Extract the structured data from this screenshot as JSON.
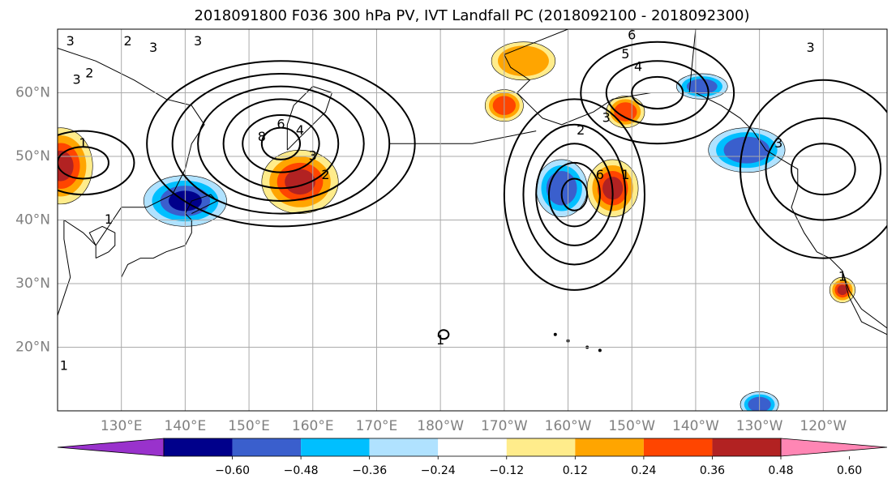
{
  "title": "2018091800 F036 300 hPa PV, IVT Landfall PC (2018092100 - 2018092300)",
  "map": {
    "projection": "PlateCarree",
    "lon_range": [
      120,
      250
    ],
    "lat_range": [
      10,
      70
    ],
    "gridlines": true,
    "lat_ticks": [
      {
        "value": 60,
        "label": "60°N"
      },
      {
        "value": 50,
        "label": "50°N"
      },
      {
        "value": 40,
        "label": "40°N"
      },
      {
        "value": 30,
        "label": "30°N"
      },
      {
        "value": 20,
        "label": "20°N"
      }
    ],
    "lon_ticks": [
      {
        "value": 130,
        "label": "130°E"
      },
      {
        "value": 140,
        "label": "140°E"
      },
      {
        "value": 150,
        "label": "150°E"
      },
      {
        "value": 160,
        "label": "160°E"
      },
      {
        "value": 170,
        "label": "170°E"
      },
      {
        "value": 180,
        "label": "180°W"
      },
      {
        "value": 190,
        "label": "170°W"
      },
      {
        "value": 200,
        "label": "160°W"
      },
      {
        "value": 210,
        "label": "150°W"
      },
      {
        "value": 220,
        "label": "140°W"
      },
      {
        "value": 230,
        "label": "130°W"
      },
      {
        "value": 240,
        "label": "120°W"
      }
    ]
  },
  "colorbar": {
    "extend": "both",
    "boundaries": [
      -0.72,
      -0.6,
      -0.48,
      -0.36,
      -0.24,
      -0.12,
      0.12,
      0.24,
      0.36,
      0.48,
      0.6,
      0.72
    ],
    "colors": [
      "#9932cc",
      "#00008b",
      "#3a5fcd",
      "#00bfff",
      "#b0e2ff",
      "#ffffff",
      "#ffec8b",
      "#ffa500",
      "#ff4500",
      "#b22222",
      "#ff86b4"
    ],
    "tick_labels": [
      "−0.60",
      "−0.48",
      "−0.36",
      "−0.24",
      "−0.12",
      "0.12",
      "0.24",
      "0.36",
      "0.48",
      "0.60"
    ]
  },
  "shading_fields": [
    {
      "name": "tan-left-edge",
      "lon": 120.5,
      "lat": 48.5,
      "rx": 5,
      "ry": 6,
      "value": 0.55
    },
    {
      "name": "blue-kuril",
      "lon": 140,
      "lat": 43,
      "rx": 6.5,
      "ry": 4,
      "value": -0.6
    },
    {
      "name": "red-northwest-pacific",
      "lon": 158,
      "lat": 46,
      "rx": 6,
      "ry": 5,
      "value": 0.55
    },
    {
      "name": "orange-alaska-north",
      "lon": 193,
      "lat": 65,
      "rx": 5,
      "ry": 3,
      "value": 0.3
    },
    {
      "name": "red-bering-sea",
      "lon": 190,
      "lat": 58,
      "rx": 3,
      "ry": 2.5,
      "value": 0.45
    },
    {
      "name": "blue-central-pacific",
      "lon": 199,
      "lat": 45,
      "rx": 4,
      "ry": 4.5,
      "value": -0.4
    },
    {
      "name": "red-central-pacific",
      "lon": 207,
      "lat": 45,
      "rx": 4,
      "ry": 4.5,
      "value": 0.5
    },
    {
      "name": "red-gulf-alaska-west",
      "lon": 209,
      "lat": 57,
      "rx": 3,
      "ry": 2.5,
      "value": 0.45
    },
    {
      "name": "blue-gulf-alaska-east",
      "lon": 221,
      "lat": 61,
      "rx": 4,
      "ry": 2,
      "value": -0.45
    },
    {
      "name": "blue-northeast-pacific",
      "lon": 228,
      "lat": 51,
      "rx": 6,
      "ry": 3.5,
      "value": -0.45
    },
    {
      "name": "red-baja",
      "lon": 243,
      "lat": 29,
      "rx": 2,
      "ry": 2,
      "value": 0.5
    },
    {
      "name": "blue-tropics-pacific",
      "lon": 230,
      "lat": 11,
      "rx": 3,
      "ry": 2,
      "value": -0.4
    }
  ],
  "contour_labels": [
    "3",
    "2",
    "3",
    "3",
    "2",
    "3",
    "1",
    "8",
    "6",
    "4",
    "3",
    "2",
    "1",
    "6",
    "5",
    "4",
    "3",
    "2",
    "1",
    "6",
    "3",
    "3",
    "1",
    "1",
    "1"
  ]
}
